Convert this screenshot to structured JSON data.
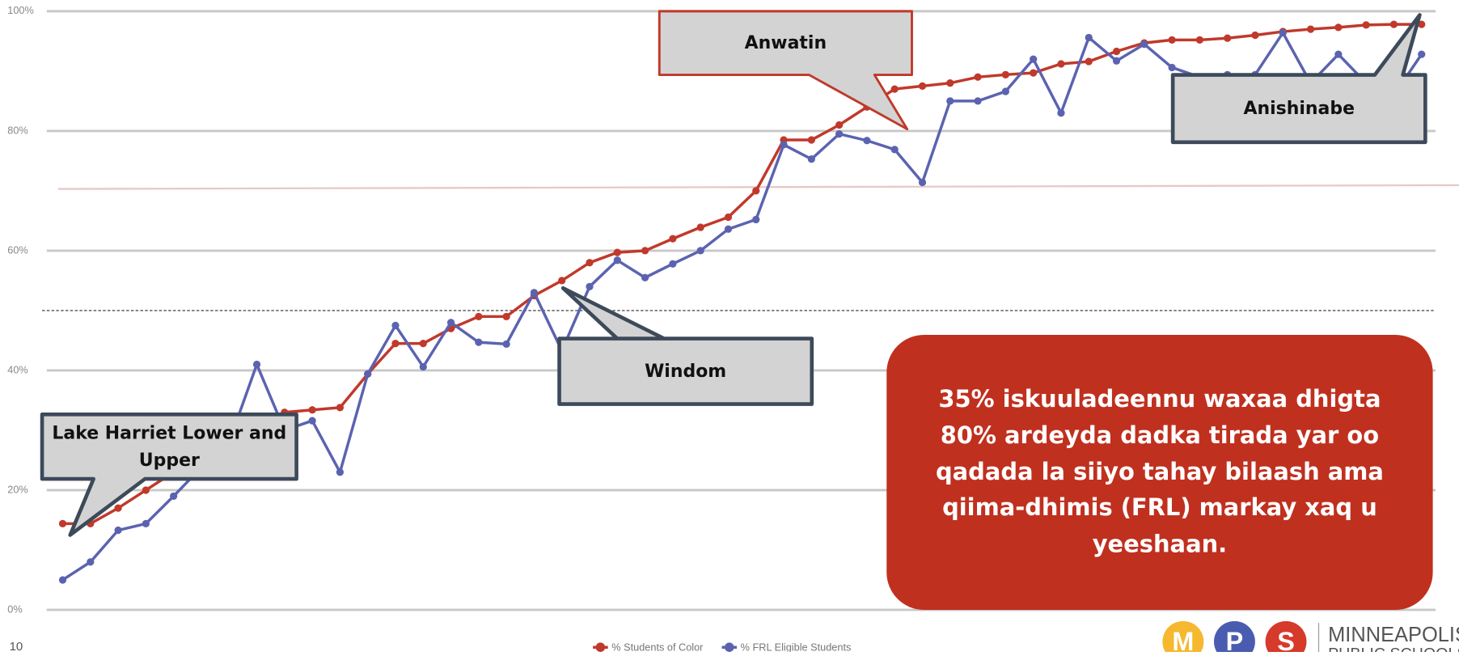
{
  "chart_data": {
    "type": "line",
    "categories": [
      null,
      null,
      null,
      null,
      null,
      null,
      null,
      null,
      null,
      null,
      null,
      null,
      null,
      null,
      null,
      null,
      null,
      null,
      null,
      null,
      null,
      null,
      null,
      null,
      null,
      null,
      null,
      null,
      null,
      null,
      null,
      null,
      null,
      null,
      null,
      null,
      null,
      null,
      null,
      null,
      null,
      null,
      null,
      null,
      null,
      null,
      null,
      null,
      null,
      null
    ],
    "series": [
      {
        "name": "% Students of Color",
        "color": "#c0392b",
        "values": [
          14.4,
          14.4,
          17,
          20,
          23,
          26,
          29,
          31,
          33,
          33.4,
          33.8,
          39.4,
          44.5,
          44.5,
          47,
          49,
          49,
          52.5,
          55,
          58,
          59.7,
          60,
          62,
          63.9,
          65.6,
          70,
          78.5,
          78.5,
          81,
          84,
          87,
          87.5,
          88,
          89,
          89.4,
          89.7,
          91.2,
          91.6,
          93.3,
          94.7,
          95.2,
          95.2,
          95.5,
          96,
          96.6,
          97,
          97.3,
          97.7,
          97.8,
          97.8
        ]
      },
      {
        "name": "% FRL Eligible Students",
        "color": "#5b63b0",
        "values": [
          5,
          8,
          13.3,
          14.4,
          19,
          23.8,
          28,
          41,
          30,
          31.6,
          23,
          39.4,
          47.5,
          40.6,
          48,
          44.7,
          44.4,
          53,
          43.3,
          54,
          58.4,
          55.5,
          57.8,
          60,
          63.6,
          65.2,
          77.7,
          75.3,
          79.5,
          78.4,
          76.9,
          71.4,
          85,
          85,
          86.6,
          92,
          83,
          95.6,
          91.7,
          94.5,
          90.6,
          89,
          89.4,
          89.4,
          96.4,
          88,
          92.8,
          88,
          86,
          92.8
        ]
      }
    ],
    "ylim": [
      0,
      100
    ],
    "yticks": [
      {
        "value": 0,
        "label": "0%"
      },
      {
        "value": 20,
        "label": "20%"
      },
      {
        "value": 40,
        "label": "40%"
      },
      {
        "value": 60,
        "label": "60%"
      },
      {
        "value": 80,
        "label": "80%"
      },
      {
        "value": 100,
        "label": "100%"
      }
    ],
    "grid": true,
    "reference_line": 50,
    "legend": "bottom",
    "annotations": [
      "Lake Harriet Lower and Upper",
      "Windom",
      "Anwatin",
      "Anishinabe",
      "35% iskuuladeennu waxaa dhigta 80% ardeyda dadka tirada yar oo qadada la siiyo tahay bilaash ama qiima-dhimis (FRL) markay xaq u yeeshaan."
    ]
  },
  "page_number": "10",
  "logo": {
    "letters": [
      "M",
      "P",
      "S"
    ],
    "line1": "MINNEAPOLIS",
    "line2": "PUBLIC SCHOOLS"
  }
}
